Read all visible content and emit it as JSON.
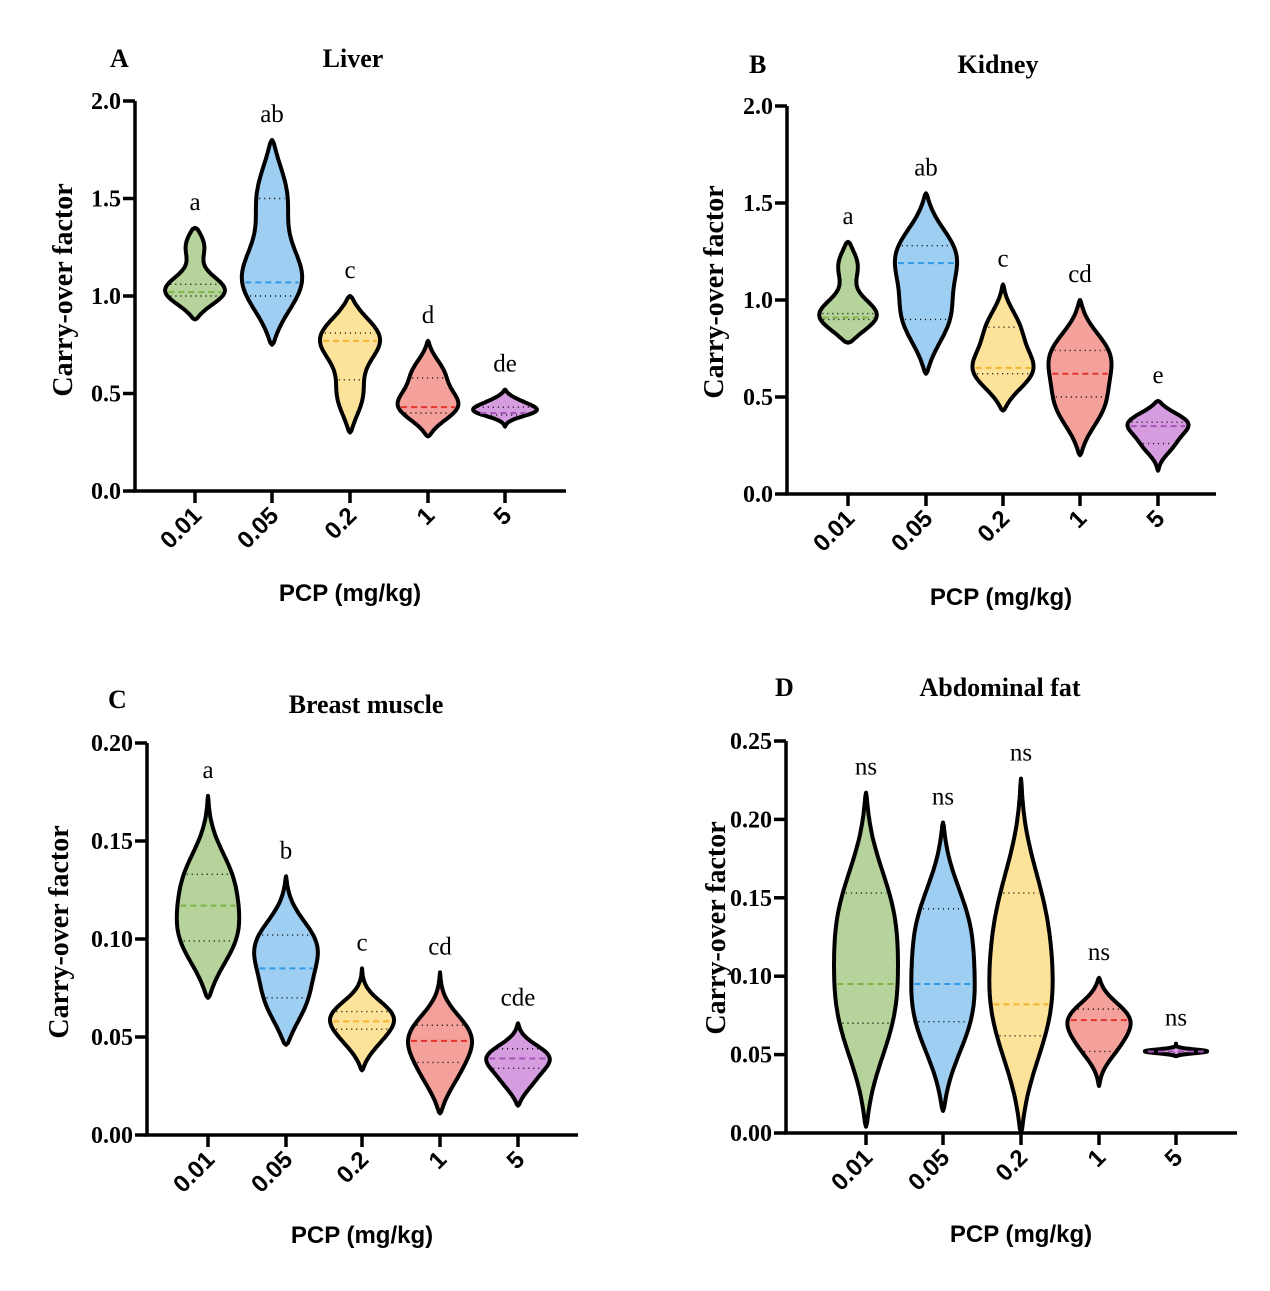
{
  "chart_data": [
    {
      "type": "violin",
      "panel": "A",
      "title": "Liver",
      "xlabel": "PCP (mg/kg)",
      "ylabel": "Carry-over factor",
      "ylim": [
        0,
        2.0
      ],
      "yticks": [
        "0.0",
        "0.5",
        "1.0",
        "1.5",
        "2.0"
      ],
      "categories": [
        "0.01",
        "0.05",
        "0.2",
        "1",
        "5"
      ],
      "colors": [
        "#b5d39a",
        "#9fcef3",
        "#fde29a",
        "#f4a19b",
        "#d59ddf"
      ],
      "median_colors": [
        "#7fb547",
        "#2f9be6",
        "#f1b62b",
        "#e5322d",
        "#a653b8"
      ],
      "series": [
        {
          "min": 0.88,
          "max": 1.35,
          "q1": 1.0,
          "median": 1.02,
          "q3": 1.06,
          "peaks": [
            {
              "y": 1.02,
              "w": 1.0
            },
            {
              "y": 1.27,
              "w": 0.35
            }
          ],
          "sig": "a"
        },
        {
          "min": 0.75,
          "max": 1.8,
          "q1": 1.0,
          "median": 1.07,
          "q3": 1.5,
          "peaks": [
            {
              "y": 1.07,
              "w": 0.82
            },
            {
              "y": 1.53,
              "w": 0.42
            }
          ],
          "sig": "ab"
        },
        {
          "min": 0.3,
          "max": 1.0,
          "q1": 0.57,
          "median": 0.77,
          "q3": 0.81,
          "peaks": [
            {
              "y": 0.79,
              "w": 0.88
            },
            {
              "y": 0.48,
              "w": 0.38
            }
          ],
          "sig": "c"
        },
        {
          "min": 0.28,
          "max": 0.77,
          "q1": 0.4,
          "median": 0.43,
          "q3": 0.58,
          "peaks": [
            {
              "y": 0.43,
              "w": 0.9
            },
            {
              "y": 0.61,
              "w": 0.45
            }
          ],
          "sig": "d"
        },
        {
          "min": 0.33,
          "max": 0.52,
          "q1": 0.39,
          "median": 0.4,
          "q3": 0.43,
          "peaks": [
            {
              "y": 0.41,
              "w": 1.0
            },
            {
              "y": 0.46,
              "w": 0.4
            }
          ],
          "sig": "de"
        }
      ]
    },
    {
      "type": "violin",
      "panel": "B",
      "title": "Kidney",
      "xlabel": "PCP (mg/kg)",
      "ylabel": "Carry-over factor",
      "ylim": [
        0,
        2.0
      ],
      "yticks": [
        "0.0",
        "0.5",
        "1.0",
        "1.5",
        "2.0"
      ],
      "categories": [
        "0.01",
        "0.05",
        "0.2",
        "1",
        "5"
      ],
      "colors": [
        "#b5d39a",
        "#9fcef3",
        "#fde29a",
        "#f4a19b",
        "#d59ddf"
      ],
      "median_colors": [
        "#7fb547",
        "#2f9be6",
        "#f1b62b",
        "#e5322d",
        "#a653b8"
      ],
      "series": [
        {
          "min": 0.78,
          "max": 1.3,
          "q1": 0.9,
          "median": 0.91,
          "q3": 0.93,
          "peaks": [
            {
              "y": 0.91,
              "w": 1.0
            },
            {
              "y": 1.19,
              "w": 0.35
            }
          ],
          "sig": "a"
        },
        {
          "min": 0.62,
          "max": 1.55,
          "q1": 0.9,
          "median": 1.19,
          "q3": 1.28,
          "peaks": [
            {
              "y": 1.24,
              "w": 0.95
            },
            {
              "y": 0.9,
              "w": 0.75
            }
          ],
          "sig": "ab"
        },
        {
          "min": 0.43,
          "max": 1.08,
          "q1": 0.62,
          "median": 0.65,
          "q3": 0.86,
          "peaks": [
            {
              "y": 0.63,
              "w": 0.95
            },
            {
              "y": 0.86,
              "w": 0.5
            }
          ],
          "sig": "c"
        },
        {
          "min": 0.2,
          "max": 1.0,
          "q1": 0.5,
          "median": 0.62,
          "q3": 0.74,
          "peaks": [
            {
              "y": 0.72,
              "w": 1.0
            },
            {
              "y": 0.45,
              "w": 0.8
            }
          ],
          "sig": "cd"
        },
        {
          "min": 0.12,
          "max": 0.48,
          "q1": 0.26,
          "median": 0.35,
          "q3": 0.37,
          "peaks": [
            {
              "y": 0.37,
              "w": 1.0
            },
            {
              "y": 0.25,
              "w": 0.45
            }
          ],
          "sig": "e"
        }
      ]
    },
    {
      "type": "violin",
      "panel": "C",
      "title": "Breast muscle",
      "xlabel": "PCP (mg/kg)",
      "ylabel": "Carry-over factor",
      "ylim": [
        0,
        0.2
      ],
      "yticks": [
        "0.00",
        "0.05",
        "0.10",
        "0.15",
        "0.20"
      ],
      "categories": [
        "0.01",
        "0.05",
        "0.2",
        "1",
        "5"
      ],
      "colors": [
        "#b5d39a",
        "#9fcef3",
        "#fde29a",
        "#f4a19b",
        "#d59ddf"
      ],
      "median_colors": [
        "#7fb547",
        "#2f9be6",
        "#f1b62b",
        "#e5322d",
        "#a653b8"
      ],
      "series": [
        {
          "min": 0.07,
          "max": 0.173,
          "q1": 0.099,
          "median": 0.117,
          "q3": 0.133,
          "peaks": [
            {
              "y": 0.1,
              "w": 0.95
            },
            {
              "y": 0.131,
              "w": 0.75
            }
          ],
          "sig": "a"
        },
        {
          "min": 0.046,
          "max": 0.132,
          "q1": 0.07,
          "median": 0.085,
          "q3": 0.102,
          "peaks": [
            {
              "y": 0.097,
              "w": 0.85
            },
            {
              "y": 0.068,
              "w": 0.6
            }
          ],
          "sig": "b"
        },
        {
          "min": 0.033,
          "max": 0.085,
          "q1": 0.054,
          "median": 0.058,
          "q3": 0.063,
          "peaks": [
            {
              "y": 0.061,
              "w": 0.9
            },
            {
              "y": 0.048,
              "w": 0.45
            }
          ],
          "sig": "c"
        },
        {
          "min": 0.011,
          "max": 0.083,
          "q1": 0.037,
          "median": 0.048,
          "q3": 0.056,
          "peaks": [
            {
              "y": 0.051,
              "w": 0.9
            },
            {
              "y": 0.031,
              "w": 0.5
            }
          ],
          "sig": "cd"
        },
        {
          "min": 0.015,
          "max": 0.057,
          "q1": 0.034,
          "median": 0.039,
          "q3": 0.044,
          "peaks": [
            {
              "y": 0.04,
              "w": 1.0
            },
            {
              "y": 0.027,
              "w": 0.45
            }
          ],
          "sig": "cde"
        }
      ]
    },
    {
      "type": "violin",
      "panel": "D",
      "title": "Abdominal fat",
      "xlabel": "PCP (mg/kg)",
      "ylabel": "Carry-over factor",
      "ylim": [
        0,
        0.25
      ],
      "yticks": [
        "0.00",
        "0.05",
        "0.10",
        "0.15",
        "0.20",
        "0.25"
      ],
      "categories": [
        "0.01",
        "0.05",
        "0.2",
        "1",
        "5"
      ],
      "colors": [
        "#b5d39a",
        "#9fcef3",
        "#fde29a",
        "#f4a19b",
        "#d59ddf"
      ],
      "median_colors": [
        "#7fb547",
        "#2f9be6",
        "#f1b62b",
        "#e5322d",
        "#a653b8"
      ],
      "series": [
        {
          "min": 0.004,
          "max": 0.217,
          "q1": 0.07,
          "median": 0.095,
          "q3": 0.153,
          "peaks": [
            {
              "y": 0.075,
              "w": 0.9
            },
            {
              "y": 0.14,
              "w": 0.88
            }
          ],
          "sig": "ns"
        },
        {
          "min": 0.014,
          "max": 0.198,
          "q1": 0.071,
          "median": 0.095,
          "q3": 0.143,
          "peaks": [
            {
              "y": 0.075,
              "w": 0.95
            },
            {
              "y": 0.133,
              "w": 0.85
            }
          ],
          "sig": "ns"
        },
        {
          "min": 0.0,
          "max": 0.226,
          "q1": 0.062,
          "median": 0.082,
          "q3": 0.153,
          "peaks": [
            {
              "y": 0.075,
              "w": 0.95
            },
            {
              "y": 0.14,
              "w": 0.75
            }
          ],
          "sig": "ns"
        },
        {
          "min": 0.03,
          "max": 0.099,
          "q1": 0.052,
          "median": 0.072,
          "q3": 0.079,
          "peaks": [
            {
              "y": 0.074,
              "w": 1.0
            },
            {
              "y": 0.055,
              "w": 0.55
            }
          ],
          "sig": "ns"
        },
        {
          "min": 0.049,
          "max": 0.057,
          "q1": 0.051,
          "median": 0.052,
          "q3": 0.055,
          "peaks": [
            {
              "y": 0.052,
              "w": 1.0
            }
          ],
          "sig": "ns"
        }
      ]
    }
  ]
}
